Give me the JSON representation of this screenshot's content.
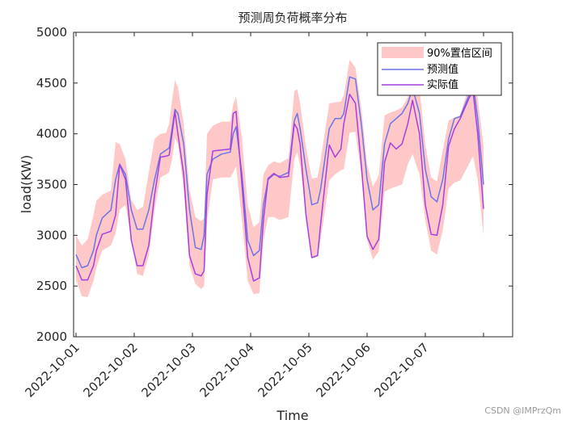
{
  "chart_data": {
    "type": "line",
    "title": "预测周负荷概率分布",
    "xlabel": "Time",
    "ylabel": "load(KW)",
    "ylim": [
      2000,
      5000
    ],
    "yticks": [
      2000,
      2500,
      3000,
      3500,
      4000,
      4500,
      5000
    ],
    "xlim": [
      0,
      7.5
    ],
    "xticks": [
      {
        "value": 0,
        "label": "2022-10-01"
      },
      {
        "value": 1,
        "label": "2022-10-02"
      },
      {
        "value": 2,
        "label": "2022-10-03"
      },
      {
        "value": 3,
        "label": "2022-10-04"
      },
      {
        "value": 4,
        "label": "2022-10-05"
      },
      {
        "value": 5,
        "label": "2022-10-06"
      },
      {
        "value": 6,
        "label": "2022-10-07"
      },
      {
        "value": 7,
        "label": ""
      }
    ],
    "x": [
      0,
      0.1,
      0.2,
      0.3,
      0.35,
      0.45,
      0.6,
      0.68,
      0.75,
      0.85,
      0.95,
      1.05,
      1.15,
      1.25,
      1.35,
      1.45,
      1.55,
      1.6,
      1.65,
      1.7,
      1.75,
      1.85,
      1.95,
      2.05,
      2.15,
      2.2,
      2.25,
      2.35,
      2.5,
      2.65,
      2.7,
      2.75,
      2.85,
      2.95,
      3.05,
      3.15,
      3.22,
      3.3,
      3.4,
      3.5,
      3.65,
      3.75,
      3.8,
      3.85,
      3.95,
      4.05,
      4.15,
      4.2,
      4.35,
      4.45,
      4.55,
      4.6,
      4.7,
      4.8,
      4.9,
      5.0,
      5.1,
      5.2,
      5.3,
      5.4,
      5.5,
      5.6,
      5.7,
      5.78,
      5.9,
      6.0,
      6.1,
      6.2,
      6.3,
      6.4,
      6.5,
      6.6,
      6.75,
      6.82,
      6.9,
      7.0
    ],
    "legend": {
      "position": "top-right",
      "entries": [
        "90%置信区间",
        "预测值",
        "实际值"
      ]
    },
    "series": [
      {
        "name": "预测值",
        "color": "#6b74e6",
        "values": [
          2810,
          2680,
          2700,
          2850,
          3000,
          3170,
          3250,
          3550,
          3700,
          3600,
          3250,
          3060,
          3060,
          3250,
          3550,
          3800,
          3840,
          3860,
          4050,
          4240,
          4200,
          3900,
          3250,
          2880,
          2860,
          3000,
          3600,
          3750,
          3800,
          3820,
          4000,
          4070,
          3600,
          2950,
          2800,
          2850,
          3300,
          3550,
          3600,
          3580,
          3620,
          4130,
          4200,
          4050,
          3650,
          3300,
          3320,
          3450,
          4050,
          4150,
          4150,
          4200,
          4560,
          4540,
          4100,
          3550,
          3250,
          3300,
          3900,
          4100,
          4150,
          4200,
          4300,
          4450,
          4200,
          3650,
          3380,
          3330,
          3550,
          3950,
          4150,
          4170,
          4380,
          4500,
          4150,
          3500
        ]
      },
      {
        "name": "实际值",
        "color": "#a63fe0",
        "values": [
          2700,
          2560,
          2560,
          2700,
          2850,
          3010,
          3040,
          3200,
          3700,
          3550,
          2950,
          2700,
          2700,
          2900,
          3400,
          3770,
          3780,
          3790,
          4000,
          4220,
          4000,
          3600,
          2800,
          2620,
          2600,
          2650,
          3400,
          3830,
          3840,
          3850,
          4200,
          4220,
          3500,
          2780,
          2550,
          2580,
          3150,
          3560,
          3610,
          3570,
          3580,
          4100,
          4050,
          3900,
          3200,
          2780,
          2800,
          3100,
          3890,
          3770,
          3850,
          4100,
          4390,
          4300,
          3700,
          2990,
          2860,
          2960,
          3720,
          3910,
          3850,
          3900,
          4100,
          4330,
          4000,
          3300,
          3010,
          3000,
          3300,
          3880,
          4050,
          4150,
          4350,
          4420,
          4000,
          3260
        ]
      },
      {
        "name": "90%置信区间",
        "color": "#ffc8c8",
        "lower": [
          2560,
          2400,
          2390,
          2550,
          2680,
          2850,
          2900,
          3020,
          3250,
          3300,
          2950,
          2620,
          2600,
          2800,
          3250,
          3570,
          3600,
          3620,
          3750,
          3960,
          3900,
          3450,
          2700,
          2520,
          2470,
          2500,
          3130,
          3550,
          3570,
          3570,
          3620,
          3680,
          3150,
          2550,
          2420,
          2430,
          2950,
          3180,
          3180,
          3150,
          3180,
          3750,
          3820,
          3680,
          3200,
          2780,
          2800,
          2950,
          3540,
          3600,
          3640,
          3650,
          4010,
          4020,
          3600,
          2950,
          2760,
          2840,
          3430,
          3460,
          3480,
          3500,
          3700,
          3800,
          3600,
          3150,
          2850,
          2810,
          3050,
          3460,
          3520,
          3540,
          3700,
          3780,
          3550,
          3000
        ],
        "upper": [
          3000,
          2900,
          2960,
          3200,
          3340,
          3400,
          3440,
          3920,
          3900,
          3750,
          3350,
          3250,
          3280,
          3620,
          3950,
          4000,
          4010,
          4100,
          4330,
          4530,
          4460,
          4100,
          3450,
          3180,
          3140,
          3170,
          4000,
          4080,
          4120,
          4120,
          4290,
          4370,
          3950,
          3300,
          3080,
          3130,
          3600,
          3690,
          3730,
          3710,
          3760,
          4420,
          4440,
          4300,
          3870,
          3560,
          3570,
          3730,
          4300,
          4310,
          4320,
          4380,
          4730,
          4650,
          4260,
          3700,
          3480,
          3590,
          4180,
          4210,
          4230,
          4260,
          4360,
          4650,
          4450,
          3890,
          3570,
          3530,
          3840,
          4130,
          4160,
          4180,
          4480,
          4520,
          4350,
          3880
        ]
      }
    ]
  },
  "watermark": "CSDN @IMPrzQm"
}
